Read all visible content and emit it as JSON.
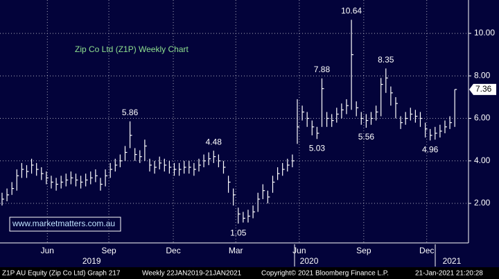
{
  "chart_data": {
    "type": "ohlc",
    "title": "Zip Co Ltd (Z1P) Weekly Chart",
    "watermark": "www.marketmatters.com.au",
    "footer": [
      "Z1P AU Equity (Zip Co Ltd) Graph 217",
      "Weekly 22JAN2019-21JAN2021",
      "Copyright© 2021 Bloomberg Finance L.P.",
      "21-Jan-2021 21:20:28"
    ],
    "color": "#ffffff",
    "background": "#03033a",
    "grid": true,
    "xlim": [
      -0.42,
      94.65
    ],
    "ylim": [
      0.14,
      11.57
    ],
    "yticks": [
      {
        "value": 2,
        "label": "2.00"
      },
      {
        "value": 4,
        "label": "4.00"
      },
      {
        "value": 6,
        "label": "6.00"
      },
      {
        "value": 8,
        "label": "8.00"
      },
      {
        "value": 10,
        "label": "10.00"
      }
    ],
    "xticks": [
      {
        "value": 9.2,
        "label": "Jun"
      },
      {
        "value": 21.7,
        "label": "Sep"
      },
      {
        "value": 34.8,
        "label": "Dec"
      },
      {
        "value": 47.5,
        "label": "Mar"
      },
      {
        "value": 60.4,
        "label": "Jun"
      },
      {
        "value": 73.5,
        "label": "Sep"
      },
      {
        "value": 86.3,
        "label": "Dec"
      }
    ],
    "year_ticks": [
      {
        "value": 18.2,
        "label": "2019"
      },
      {
        "value": 62.4,
        "label": "2020"
      },
      {
        "value": 91.4,
        "label": "2021"
      }
    ],
    "high": [
      2.5,
      2.7,
      3.0,
      3.6,
      3.9,
      3.8,
      4.1,
      3.9,
      3.7,
      3.5,
      3.3,
      3.2,
      3.3,
      3.4,
      3.5,
      3.4,
      3.3,
      3.4,
      3.5,
      3.6,
      3.2,
      3.6,
      3.9,
      4.1,
      4.3,
      4.7,
      5.86,
      4.6,
      4.5,
      5.0,
      4.1,
      4.0,
      4.2,
      4.1,
      4.0,
      3.9,
      3.9,
      4.0,
      4.0,
      3.9,
      4.1,
      4.3,
      4.4,
      4.48,
      4.3,
      4.0,
      3.3,
      2.7,
      1.8,
      1.6,
      1.7,
      1.9,
      2.5,
      2.9,
      2.6,
      3.3,
      3.7,
      3.9,
      4.1,
      4.3,
      6.9,
      6.6,
      6.3,
      5.9,
      5.6,
      7.88,
      6.3,
      6.2,
      6.5,
      6.7,
      6.9,
      10.64,
      6.8,
      6.3,
      6.2,
      6.3,
      6.6,
      7.9,
      8.35,
      7.5,
      7.0,
      6.1,
      6.3,
      6.5,
      6.4,
      6.3,
      5.8,
      5.5,
      5.6,
      5.7,
      5.9,
      6.1,
      7.36
    ],
    "low": [
      1.9,
      2.1,
      2.4,
      2.6,
      3.2,
      3.2,
      3.4,
      3.3,
      3.1,
      2.9,
      2.7,
      2.6,
      2.7,
      2.8,
      2.9,
      2.8,
      2.7,
      2.8,
      2.9,
      3.0,
      2.6,
      2.8,
      3.2,
      3.5,
      3.7,
      4.0,
      4.6,
      4.0,
      3.9,
      4.0,
      3.5,
      3.4,
      3.6,
      3.5,
      3.4,
      3.3,
      3.3,
      3.4,
      3.4,
      3.3,
      3.5,
      3.7,
      3.8,
      3.9,
      3.7,
      3.4,
      2.5,
      1.9,
      1.05,
      1.1,
      1.1,
      1.3,
      1.6,
      2.2,
      2.0,
      2.5,
      3.1,
      3.3,
      3.5,
      3.7,
      4.8,
      5.9,
      5.6,
      5.2,
      5.03,
      5.6,
      5.6,
      5.6,
      5.8,
      6.0,
      6.2,
      6.4,
      6.1,
      5.7,
      5.56,
      5.7,
      5.9,
      6.1,
      7.2,
      6.6,
      6.0,
      5.5,
      5.7,
      5.9,
      5.8,
      5.6,
      5.1,
      4.96,
      5.0,
      5.1,
      5.3,
      5.5,
      5.6
    ],
    "close": [
      2.2,
      2.4,
      2.7,
      3.3,
      3.6,
      3.5,
      3.8,
      3.6,
      3.4,
      3.2,
      3.0,
      2.9,
      3.0,
      3.1,
      3.2,
      3.1,
      3.0,
      3.1,
      3.2,
      3.3,
      2.9,
      3.3,
      3.6,
      3.8,
      4.0,
      4.4,
      5.2,
      4.3,
      4.2,
      4.7,
      3.8,
      3.7,
      3.9,
      3.8,
      3.7,
      3.6,
      3.6,
      3.7,
      3.7,
      3.6,
      3.8,
      4.0,
      4.1,
      4.2,
      4.0,
      3.7,
      3.0,
      2.4,
      1.5,
      1.3,
      1.4,
      1.6,
      2.2,
      2.6,
      2.3,
      3.0,
      3.4,
      3.6,
      3.8,
      4.0,
      5.6,
      6.3,
      6.0,
      5.6,
      5.3,
      7.4,
      6.0,
      5.9,
      6.2,
      6.4,
      6.6,
      9.0,
      6.5,
      6.0,
      5.9,
      6.0,
      6.3,
      7.6,
      7.9,
      7.2,
      6.7,
      5.8,
      6.0,
      6.2,
      6.1,
      6.0,
      5.5,
      5.2,
      5.3,
      5.4,
      5.6,
      5.8,
      7.36
    ],
    "annotations": [
      {
        "text": "5.86",
        "x": 26,
        "y": 5.86
      },
      {
        "text": "4.48",
        "x": 43,
        "y": 4.48
      },
      {
        "text": "1.05",
        "x": 48,
        "y": 1.05
      },
      {
        "text": "7.88",
        "x": 65,
        "y": 7.88
      },
      {
        "text": "5.03",
        "x": 64,
        "y": 5.03
      },
      {
        "text": "10.64",
        "x": 71,
        "y": 10.64
      },
      {
        "text": "5.56",
        "x": 74,
        "y": 5.56
      },
      {
        "text": "8.35",
        "x": 78,
        "y": 8.35
      },
      {
        "text": "4.96",
        "x": 87,
        "y": 4.96
      }
    ]
  }
}
